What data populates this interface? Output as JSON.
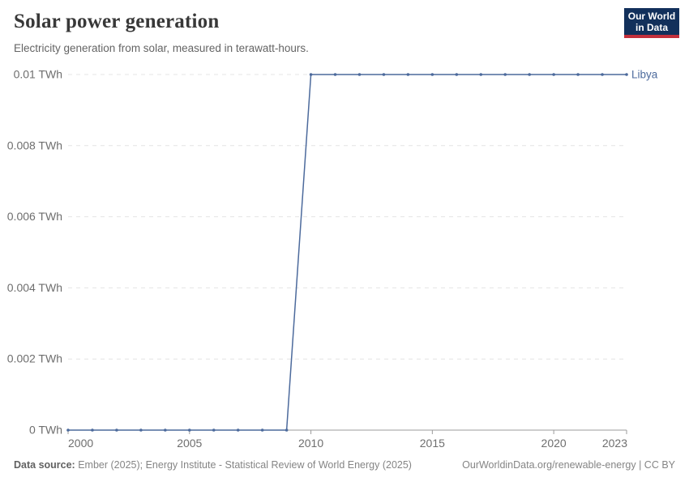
{
  "header": {
    "title": "Solar power generation",
    "subtitle": "Electricity generation from solar, measured in terawatt-hours.",
    "logo": {
      "line1": "Our World",
      "line2": "in Data"
    }
  },
  "footer": {
    "source_label": "Data source:",
    "source_text": " Ember (2025); Energy Institute - Statistical Review of World Energy (2025)",
    "link_text": "OurWorldinData.org/renewable-energy | CC BY"
  },
  "colors": {
    "line": "#4C6A9C",
    "marker": "#4C6A9C",
    "entity_label": "#4C6A9C",
    "grid": "#e4e4e4",
    "axis": "#9b9b9b",
    "tick_label": "#6e6e6e",
    "logo_bg": "#12305b",
    "logo_bar": "#c3303c"
  },
  "chart_data": {
    "type": "line",
    "title": "Solar power generation",
    "subtitle": "Electricity generation from solar, measured in terawatt-hours.",
    "unit": "TWh",
    "grid": "horizontal-dashed",
    "legend_position": "label-at-line-end",
    "xlim": [
      2000,
      2023
    ],
    "ylim": [
      0,
      0.01
    ],
    "series": [
      {
        "name": "Libya",
        "x": [
          2000,
          2001,
          2002,
          2003,
          2004,
          2005,
          2006,
          2007,
          2008,
          2009,
          2010,
          2011,
          2012,
          2013,
          2014,
          2015,
          2016,
          2017,
          2018,
          2019,
          2020,
          2021,
          2022,
          2023
        ],
        "values": [
          0,
          0,
          0,
          0,
          0,
          0,
          0,
          0,
          0,
          0,
          0.01,
          0.01,
          0.01,
          0.01,
          0.01,
          0.01,
          0.01,
          0.01,
          0.01,
          0.01,
          0.01,
          0.01,
          0.01,
          0.01
        ]
      }
    ],
    "yticks": [
      {
        "value": 0,
        "label": "0 TWh"
      },
      {
        "value": 0.002,
        "label": "0.002 TWh"
      },
      {
        "value": 0.004,
        "label": "0.004 TWh"
      },
      {
        "value": 0.006,
        "label": "0.006 TWh"
      },
      {
        "value": 0.008,
        "label": "0.008 TWh"
      },
      {
        "value": 0.01,
        "label": "0.01 TWh"
      }
    ],
    "xticks": [
      {
        "value": 2000,
        "label": "2000"
      },
      {
        "value": 2005,
        "label": "2005"
      },
      {
        "value": 2010,
        "label": "2010"
      },
      {
        "value": 2015,
        "label": "2015"
      },
      {
        "value": 2020,
        "label": "2020"
      },
      {
        "value": 2023,
        "label": "2023"
      }
    ]
  }
}
